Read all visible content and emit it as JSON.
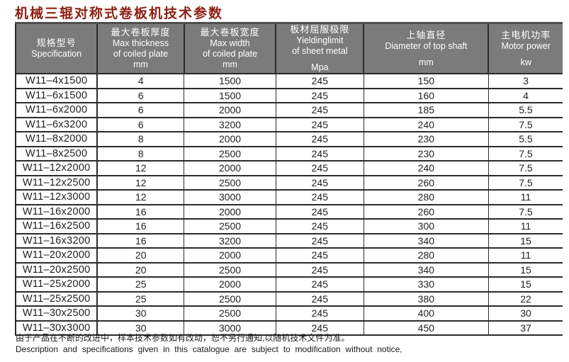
{
  "title": "机械三辊对称式卷板机技术参数",
  "table": {
    "columns": [
      {
        "lines": [
          "规格型号",
          "Specification"
        ],
        "unit": ""
      },
      {
        "lines": [
          "最大卷板厚度",
          "Max thickness",
          "of coiled plate",
          "mm"
        ],
        "unit": ""
      },
      {
        "lines": [
          "最大卷板宽度",
          "Max width",
          "of coiled plate",
          "mm"
        ],
        "unit": ""
      },
      {
        "lines": [
          "板材屈服极限",
          "Yieldinglimit",
          "of sheet metal"
        ],
        "unit": "Mpa"
      },
      {
        "lines": [
          "上轴直径",
          "Diameter of top shaft"
        ],
        "unit": "mm"
      },
      {
        "lines": [
          "主电机功率",
          "Motor power"
        ],
        "unit": "kw"
      }
    ],
    "rows": [
      [
        "W11–4x1500",
        "4",
        "1500",
        "245",
        "150",
        "3"
      ],
      [
        "W11–6x1500",
        "6",
        "1500",
        "245",
        "160",
        "4"
      ],
      [
        "W11–6x2000",
        "6",
        "2000",
        "245",
        "185",
        "5.5"
      ],
      [
        "W11–6x3200",
        "6",
        "3200",
        "245",
        "240",
        "7.5"
      ],
      [
        "W11–8x2000",
        "8",
        "2000",
        "245",
        "230",
        "5.5"
      ],
      [
        "W11–8x2500",
        "8",
        "2500",
        "245",
        "230",
        "7.5"
      ],
      [
        "W11–12x2000",
        "12",
        "2000",
        "245",
        "240",
        "7.5"
      ],
      [
        "W11–12x2500",
        "12",
        "2500",
        "245",
        "260",
        "7.5"
      ],
      [
        "W11–12x3000",
        "12",
        "3000",
        "245",
        "280",
        "11"
      ],
      [
        "W11–16x2000",
        "16",
        "2000",
        "245",
        "260",
        "7.5"
      ],
      [
        "W11–16x2500",
        "16",
        "2500",
        "245",
        "300",
        "11"
      ],
      [
        "W11–16x3200",
        "16",
        "3200",
        "245",
        "340",
        "15"
      ],
      [
        "W11–20x2000",
        "20",
        "2000",
        "245",
        "280",
        "11"
      ],
      [
        "W11–20x2500",
        "20",
        "2500",
        "245",
        "340",
        "15"
      ],
      [
        "W11–25x2000",
        "25",
        "2000",
        "245",
        "330",
        "15"
      ],
      [
        "W11–25x2500",
        "25",
        "2500",
        "245",
        "380",
        "22"
      ],
      [
        "W11–30x2500",
        "30",
        "2500",
        "245",
        "400",
        "30"
      ],
      [
        "W11–30x3000",
        "30",
        "3000",
        "245",
        "450",
        "37"
      ]
    ]
  },
  "footer": {
    "line_cn": "由于产品在不断的改进中，样本技术参数如有改动，恕不另行通知,以随机技术文件为准。",
    "line_en": "Description and specifications given in this catalogue are subject to modification without notice,"
  },
  "colors": {
    "title_red": "#8e2014",
    "header_gray": "#7b7b7b",
    "header_text": "#ffffff",
    "border_dark": "#2b2b2b",
    "text_dark": "#1f1f1f"
  }
}
